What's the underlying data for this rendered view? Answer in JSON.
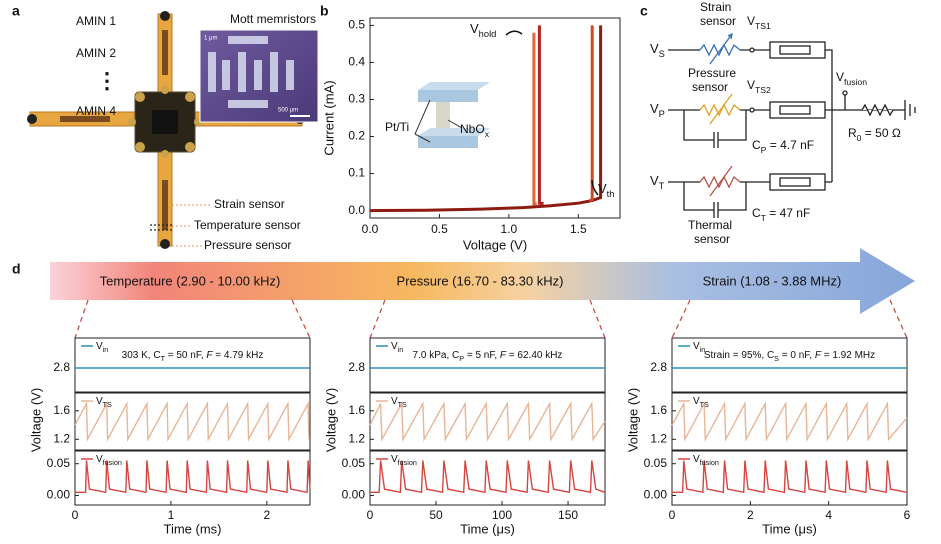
{
  "panel_labels": [
    "a",
    "b",
    "c",
    "d"
  ],
  "panel_a": {
    "amin": [
      "AMIN 1",
      "AMIN 2",
      "AMIN 4"
    ],
    "ellipsis": "⋮",
    "inset_title": "Mott memristors",
    "scale_small": "1 μm",
    "scale_large": "500 μm",
    "sensors": [
      "Strain sensor",
      "Temperature sensor",
      "Pressure sensor"
    ]
  },
  "panel_c": {
    "strain_sensor": [
      "Strain",
      "sensor"
    ],
    "pressure_sensor": [
      "Pressure",
      "sensor"
    ],
    "thermal_sensor": [
      "Thermal",
      "sensor"
    ],
    "v_s": {
      "main": "V",
      "sub": "S"
    },
    "v_p": {
      "main": "V",
      "sub": "P"
    },
    "v_t": {
      "main": "V",
      "sub": "T"
    },
    "v_ts1": {
      "main": "V",
      "sub": "TS1"
    },
    "v_ts2": {
      "main": "V",
      "sub": "TS2"
    },
    "v_fusion": {
      "main": "V",
      "sub": "fusion"
    },
    "c_p": [
      {
        "text": "C"
      },
      {
        "text": "P",
        "sub": true
      },
      {
        "text": " = 4.7 nF"
      }
    ],
    "c_t": [
      {
        "text": "C"
      },
      {
        "text": "T",
        "sub": true
      },
      {
        "text": " = 47 nF"
      }
    ],
    "r_0": [
      {
        "text": "R"
      },
      {
        "text": "0",
        "sub": true
      },
      {
        "text": " = 50 Ω"
      }
    ]
  },
  "panel_d": {
    "bands": [
      "Temperature (2.90 - 10.00 kHz)",
      "Pressure (16.70 - 83.30 kHz)",
      "Strain (1.08 - 3.88 MHz)"
    ]
  },
  "chart_data": [
    {
      "type": "line",
      "xlabel": "Voltage (V)",
      "ylabel": "Current (mA)",
      "xlim": [
        0,
        1.8
      ],
      "ylim": [
        -0.02,
        0.52
      ],
      "xticks": [
        {
          "value": 0,
          "label": "0.0"
        },
        0.5,
        {
          "value": 1,
          "label": "1.0"
        },
        1.5
      ],
      "yticks": [
        {
          "value": 0,
          "label": "0.0"
        },
        0.1,
        0.2,
        0.3,
        0.4,
        0.5
      ],
      "series": [
        {
          "color": "#8e1b10",
          "x": [
            0,
            0.4,
            0.8,
            1.1,
            1.3,
            1.5,
            1.6,
            1.66,
            1.66
          ],
          "values": [
            0,
            0.001,
            0.004,
            0.008,
            0.013,
            0.02,
            0.027,
            0.035,
            0.5
          ]
        },
        {
          "color": "#d2462a",
          "x": [
            1.6,
            1.6,
            1.58
          ],
          "values": [
            0.5,
            0.03,
            0.026
          ]
        },
        {
          "color": "#b5231a",
          "x": [
            1.22,
            1.22,
            1.25
          ],
          "values": [
            0.5,
            0.02,
            0.019
          ]
        },
        {
          "color": "#e0673a",
          "x": [
            1.18,
            1.18,
            1.2
          ],
          "values": [
            0.48,
            0.018,
            0.018
          ]
        }
      ],
      "annotations": {
        "v_hold": {
          "main": "V",
          "sub": "hold"
        },
        "v_th": {
          "main": "V",
          "sub": "th"
        },
        "electrode": "Pt/Ti",
        "oxide": {
          "main": "NbO",
          "sub": "x"
        }
      }
    },
    {
      "type": "line",
      "xlabel": "Time (ms)",
      "ylabel": "Voltage (V)",
      "xlim": [
        0,
        2.45
      ],
      "xticks": [
        0,
        1,
        2
      ],
      "annotation": [
        {
          "text": "303 K, C"
        },
        {
          "text": "T",
          "sub": true
        },
        {
          "text": " = 50 nF, "
        },
        {
          "text": "F",
          "italic": true
        },
        {
          "text": " = 4.79 kHz"
        }
      ],
      "rows": [
        {
          "name": {
            "main": "V",
            "sub": "in"
          },
          "color": "#2a8fb5",
          "ylim": [
            2.6,
            3.05
          ],
          "yticks": [
            2.8
          ],
          "x": [
            0,
            2.45
          ],
          "values": [
            2.8,
            2.8
          ]
        },
        {
          "name": {
            "main": "V",
            "sub": "TS"
          },
          "color": "#e8b596",
          "ylim": [
            1.05,
            1.85
          ],
          "yticks": [
            1.2,
            1.6
          ],
          "x": [
            0,
            0.12,
            0.13,
            0.33,
            0.34,
            0.54,
            0.55,
            0.75,
            0.76,
            0.96,
            0.97,
            1.17,
            1.18,
            1.38,
            1.39,
            1.59,
            1.6,
            1.8,
            1.81,
            2.01,
            2.02,
            2.22,
            2.23,
            2.43,
            2.44
          ],
          "values": [
            1.4,
            1.7,
            1.2,
            1.7,
            1.2,
            1.7,
            1.2,
            1.7,
            1.2,
            1.7,
            1.2,
            1.7,
            1.2,
            1.7,
            1.2,
            1.7,
            1.2,
            1.7,
            1.2,
            1.7,
            1.2,
            1.7,
            1.2,
            1.7,
            1.2
          ]
        },
        {
          "name": {
            "main": "V",
            "sub": "fusion"
          },
          "color": "#d6453f",
          "ylim": [
            -0.015,
            0.07
          ],
          "yticks": [
            {
              "value": 0,
              "label": "0.00"
            },
            0.05
          ],
          "x": [
            0,
            0.11,
            0.12,
            0.15,
            0.32,
            0.33,
            0.36,
            0.53,
            0.54,
            0.57,
            0.74,
            0.75,
            0.78,
            0.95,
            0.96,
            0.99,
            1.16,
            1.17,
            1.2,
            1.37,
            1.38,
            1.41,
            1.58,
            1.59,
            1.62,
            1.79,
            1.8,
            1.83,
            2.0,
            2.01,
            2.04,
            2.21,
            2.22,
            2.25,
            2.42,
            2.43,
            2.45
          ],
          "values": [
            0.005,
            0.005,
            0.055,
            0.01,
            0.005,
            0.055,
            0.01,
            0.005,
            0.055,
            0.01,
            0.005,
            0.055,
            0.01,
            0.005,
            0.055,
            0.01,
            0.005,
            0.055,
            0.01,
            0.005,
            0.055,
            0.01,
            0.005,
            0.055,
            0.01,
            0.005,
            0.055,
            0.01,
            0.005,
            0.055,
            0.01,
            0.005,
            0.055,
            0.01,
            0.005,
            0.055,
            0.01
          ]
        }
      ]
    },
    {
      "type": "line",
      "xlabel": "Time (μs)",
      "ylabel": "Voltage (V)",
      "xlim": [
        0,
        178
      ],
      "xticks": [
        0,
        50,
        100,
        150
      ],
      "annotation": [
        {
          "text": "7.0 kPa, C"
        },
        {
          "text": "P",
          "sub": true
        },
        {
          "text": " = 5 nF, "
        },
        {
          "text": "F",
          "italic": true
        },
        {
          "text": " = 62.40 kHz"
        }
      ],
      "rows": [
        {
          "name": {
            "main": "V",
            "sub": "in"
          },
          "color": "#2a8fb5",
          "ylim": [
            2.6,
            3.05
          ],
          "yticks": [
            2.8
          ],
          "x": [
            0,
            178
          ],
          "values": [
            2.8,
            2.8
          ]
        },
        {
          "name": {
            "main": "V",
            "sub": "TS"
          },
          "color": "#e8b596",
          "ylim": [
            1.05,
            1.85
          ],
          "yticks": [
            1.2,
            1.6
          ],
          "x": [
            0,
            8,
            9,
            24,
            25,
            40,
            41,
            56,
            57,
            72,
            73,
            88,
            89,
            104,
            105,
            120,
            121,
            136,
            137,
            152,
            153,
            168,
            169,
            178
          ],
          "values": [
            1.4,
            1.7,
            1.2,
            1.7,
            1.2,
            1.7,
            1.2,
            1.7,
            1.2,
            1.7,
            1.2,
            1.7,
            1.2,
            1.7,
            1.2,
            1.7,
            1.2,
            1.7,
            1.2,
            1.7,
            1.2,
            1.7,
            1.2,
            1.45
          ]
        },
        {
          "name": {
            "main": "V",
            "sub": "fusion"
          },
          "color": "#d6453f",
          "ylim": [
            -0.015,
            0.07
          ],
          "yticks": [
            {
              "value": 0,
              "label": "0.00"
            },
            0.05
          ],
          "x": [
            0,
            7,
            8,
            11,
            23,
            24,
            27,
            39,
            40,
            43,
            55,
            56,
            59,
            71,
            72,
            75,
            87,
            88,
            91,
            103,
            104,
            107,
            119,
            120,
            123,
            135,
            136,
            139,
            151,
            152,
            155,
            167,
            168,
            171,
            178
          ],
          "values": [
            0.005,
            0.005,
            0.055,
            0.01,
            0.005,
            0.055,
            0.01,
            0.005,
            0.055,
            0.01,
            0.005,
            0.055,
            0.01,
            0.005,
            0.055,
            0.01,
            0.005,
            0.055,
            0.01,
            0.005,
            0.055,
            0.01,
            0.005,
            0.055,
            0.01,
            0.005,
            0.055,
            0.01,
            0.005,
            0.055,
            0.01,
            0.005,
            0.055,
            0.01,
            0.005
          ]
        }
      ]
    },
    {
      "type": "line",
      "xlabel": "Time (μs)",
      "ylabel": "Voltage (V)",
      "xlim": [
        0,
        6
      ],
      "xticks": [
        0,
        2,
        4,
        6
      ],
      "annotation": [
        {
          "text": "Strain = 95%, C"
        },
        {
          "text": "S",
          "sub": true
        },
        {
          "text": " = 0 nF, "
        },
        {
          "text": "F",
          "italic": true
        },
        {
          "text": " = 1.92 MHz"
        }
      ],
      "rows": [
        {
          "name": {
            "main": "V",
            "sub": "in"
          },
          "color": "#2a8fb5",
          "ylim": [
            2.6,
            3.05
          ],
          "yticks": [
            2.8
          ],
          "x": [
            0,
            6
          ],
          "values": [
            2.8,
            2.8
          ]
        },
        {
          "name": {
            "main": "V",
            "sub": "TS"
          },
          "color": "#e8b596",
          "ylim": [
            1.05,
            1.85
          ],
          "yticks": [
            1.2,
            1.6
          ],
          "x": [
            0,
            0.3,
            0.33,
            0.82,
            0.85,
            1.34,
            1.37,
            1.86,
            1.89,
            2.38,
            2.41,
            2.9,
            2.93,
            3.42,
            3.45,
            3.94,
            3.97,
            4.46,
            4.49,
            4.98,
            5.01,
            5.5,
            5.53,
            6
          ],
          "values": [
            1.4,
            1.7,
            1.2,
            1.7,
            1.2,
            1.7,
            1.2,
            1.7,
            1.2,
            1.7,
            1.2,
            1.7,
            1.2,
            1.7,
            1.2,
            1.7,
            1.2,
            1.7,
            1.2,
            1.7,
            1.2,
            1.7,
            1.2,
            1.5
          ]
        },
        {
          "name": {
            "main": "V",
            "sub": "fusion"
          },
          "color": "#d6453f",
          "ylim": [
            -0.015,
            0.07
          ],
          "yticks": [
            {
              "value": 0,
              "label": "0.00"
            },
            0.05
          ],
          "x": [
            0,
            0.27,
            0.3,
            0.38,
            0.79,
            0.82,
            0.9,
            1.31,
            1.34,
            1.42,
            1.83,
            1.86,
            1.94,
            2.35,
            2.38,
            2.46,
            2.87,
            2.9,
            2.98,
            3.39,
            3.42,
            3.5,
            3.91,
            3.94,
            4.02,
            4.43,
            4.46,
            4.54,
            4.95,
            4.98,
            5.06,
            5.47,
            5.5,
            5.58,
            6
          ],
          "values": [
            0.005,
            0.005,
            0.055,
            0.01,
            0.005,
            0.055,
            0.01,
            0.005,
            0.055,
            0.01,
            0.005,
            0.055,
            0.01,
            0.005,
            0.055,
            0.01,
            0.005,
            0.055,
            0.01,
            0.005,
            0.055,
            0.01,
            0.005,
            0.055,
            0.01,
            0.005,
            0.055,
            0.01,
            0.005,
            0.055,
            0.01,
            0.005,
            0.055,
            0.01,
            0.005
          ]
        }
      ]
    }
  ]
}
